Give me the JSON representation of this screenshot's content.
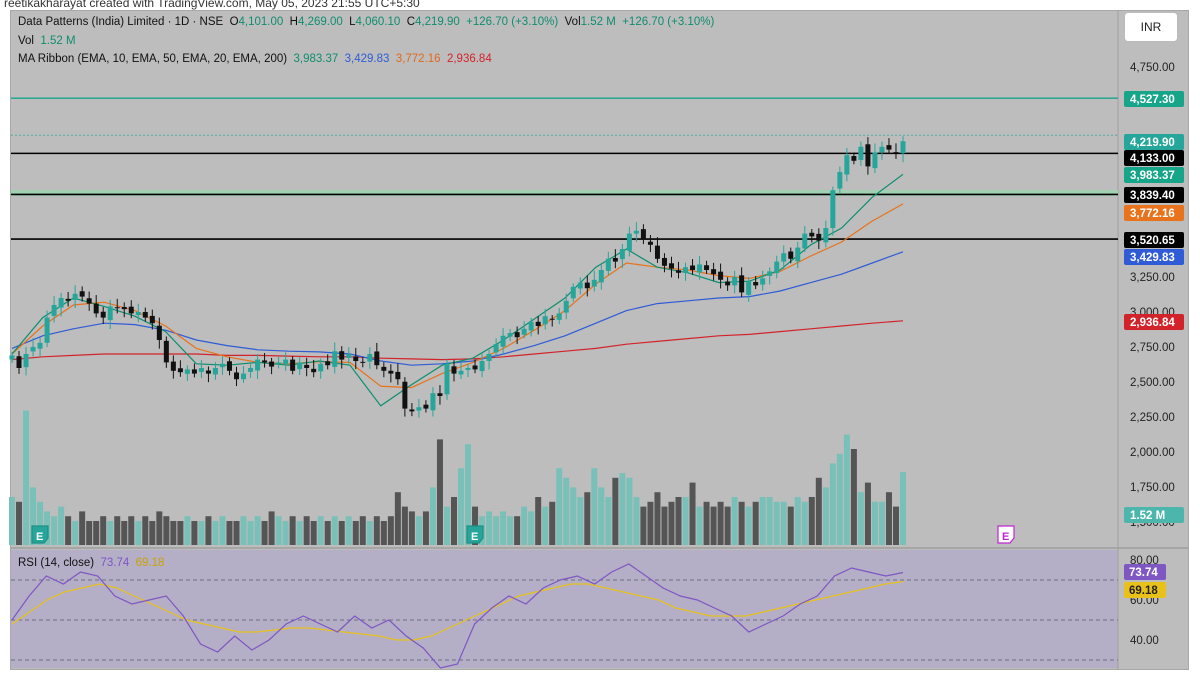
{
  "header": {
    "creator_line": "reetikakharayat created with TradingView.com, May 05, 2023 21:55 UTC+5:30",
    "currency": "INR"
  },
  "legend": {
    "symbol": "Data Patterns (India) Limited · 1D · NSE",
    "open_label": "O",
    "open": "4,101.00",
    "high_label": "H",
    "high": "4,269.00",
    "low_label": "L",
    "low": "4,060.10",
    "close_label": "C",
    "close": "4,219.90",
    "change": "+126.70 (+3.10%)",
    "vol_label": "Vol",
    "vol": "1.52 M",
    "change2": "+126.70 (+3.10%)",
    "vol_row_label": "Vol",
    "vol_row_value": "1.52 M",
    "ma_label": "MA Ribbon (EMA, 10, EMA, 50, EMA, 20, EMA, 200)",
    "ma_values": [
      "3,983.37",
      "3,429.83",
      "3,772.16",
      "2,936.84"
    ],
    "rsi_label": "RSI (14, close)",
    "rsi_value": "73.74",
    "rsi_ma_value": "69.18"
  },
  "colors": {
    "background": "#bdbdbd",
    "rsi_background": "#b4aec6",
    "up_candle": "#26a69a",
    "down_candle": "#111111",
    "ema10": "#0e8e6e",
    "ema20": "#e8731c",
    "ema50": "#2f5bd6",
    "ema200": "#d3232a",
    "rsi_line": "#7e57c2",
    "rsi_ma": "#e8c21a",
    "vol_up": "#79c1b8",
    "vol_down": "#555555",
    "hline_teal": "#17a589",
    "hline_black": "#000000"
  },
  "chart_data": {
    "type": "candlestick",
    "title": "Data Patterns (India) Limited · 1D · NSE",
    "y_axis_ticks": [
      "4,750.00",
      "3,250.00",
      "3,000.00",
      "2,750.00",
      "2,500.00",
      "2,250.00",
      "2,000.00",
      "1,750.00",
      "1,500.00"
    ],
    "ylim": [
      1500,
      5000
    ],
    "price_tags": [
      {
        "label": "4,527.30",
        "value": 4527.3,
        "style": "teal-line"
      },
      {
        "label": "4,219.90",
        "value": 4219.9,
        "style": "last-price"
      },
      {
        "label": "4,133.00",
        "value": 4133.0,
        "style": "black-line"
      },
      {
        "label": "3,983.37",
        "value": 3983.37,
        "style": "ema10"
      },
      {
        "label": "3,839.40",
        "value": 3839.4,
        "style": "black-line"
      },
      {
        "label": "3,772.16",
        "value": 3772.16,
        "style": "ema20"
      },
      {
        "label": "3,520.65",
        "value": 3520.65,
        "style": "black-line"
      },
      {
        "label": "3,429.83",
        "value": 3429.83,
        "style": "ema50"
      },
      {
        "label": "2,936.84",
        "value": 2936.84,
        "style": "ema200"
      },
      {
        "label": "1.52 M",
        "value": 1.52,
        "style": "volume"
      }
    ],
    "horizontal_lines": [
      {
        "value": 4527.3,
        "color": "teal"
      },
      {
        "value": 4133.0,
        "color": "black"
      },
      {
        "value": 3850.0,
        "color": "green-band"
      },
      {
        "value": 3839.4,
        "color": "black"
      },
      {
        "value": 3520.65,
        "color": "black"
      }
    ],
    "close_series": [
      2690,
      2600,
      2700,
      2750,
      2780,
      2960,
      3050,
      3100,
      3080,
      3130,
      3110,
      3060,
      2990,
      2960,
      3040,
      3030,
      3020,
      2990,
      3000,
      2960,
      2920,
      2800,
      2640,
      2580,
      2570,
      2590,
      2560,
      2600,
      2560,
      2600,
      2630,
      2580,
      2520,
      2560,
      2600,
      2660,
      2640,
      2610,
      2640,
      2660,
      2580,
      2640,
      2600,
      2570,
      2630,
      2620,
      2720,
      2660,
      2700,
      2650,
      2640,
      2700,
      2620,
      2580,
      2560,
      2520,
      2310,
      2290,
      2320,
      2310,
      2420,
      2400,
      2630,
      2560,
      2580,
      2600,
      2590,
      2650,
      2700,
      2770,
      2830,
      2850,
      2820,
      2880,
      2930,
      2900,
      2970,
      2950,
      2990,
      3080,
      3180,
      3210,
      3170,
      3230,
      3300,
      3380,
      3360,
      3450,
      3560,
      3580,
      3520,
      3480,
      3380,
      3330,
      3310,
      3280,
      3320,
      3300,
      3340,
      3300,
      3270,
      3230,
      3190,
      3250,
      3140,
      3220,
      3190,
      3240,
      3290,
      3360,
      3420,
      3380,
      3460,
      3560,
      3540,
      3510,
      3600,
      3870,
      4000,
      4120,
      4080,
      4180,
      4040,
      4140,
      4180,
      4160,
      4140,
      4219.9
    ],
    "ema10_series": [
      2700,
      2960,
      3100,
      3040,
      2970,
      2860,
      2630,
      2620,
      2640,
      2620,
      2650,
      2620,
      2330,
      2480,
      2620,
      2670,
      2800,
      2950,
      3100,
      3320,
      3450,
      3320,
      3280,
      3210,
      3220,
      3300,
      3480,
      3600,
      3820,
      3983.37
    ],
    "ema20_series": [
      2700,
      2900,
      3050,
      3070,
      3010,
      2900,
      2740,
      2680,
      2640,
      2630,
      2645,
      2640,
      2470,
      2460,
      2560,
      2640,
      2740,
      2870,
      3010,
      3200,
      3350,
      3320,
      3300,
      3260,
      3240,
      3290,
      3400,
      3500,
      3650,
      3772.16
    ],
    "ema50_series": [
      2740,
      2830,
      2880,
      2920,
      2910,
      2870,
      2800,
      2760,
      2730,
      2720,
      2715,
      2700,
      2650,
      2620,
      2630,
      2650,
      2700,
      2760,
      2830,
      2920,
      3010,
      3060,
      3080,
      3100,
      3110,
      3150,
      3210,
      3270,
      3350,
      3429.83
    ],
    "ema200_series": [
      2660,
      2680,
      2690,
      2700,
      2700,
      2700,
      2700,
      2690,
      2690,
      2685,
      2680,
      2680,
      2670,
      2665,
      2660,
      2665,
      2680,
      2700,
      2720,
      2740,
      2770,
      2790,
      2810,
      2830,
      2840,
      2860,
      2880,
      2900,
      2920,
      2936.84
    ],
    "volume_series": [
      1.0,
      0.9,
      2.8,
      1.2,
      0.9,
      0.7,
      0.6,
      0.8,
      0.6,
      0.5,
      0.7,
      0.5,
      0.5,
      0.6,
      0.5,
      0.6,
      0.5,
      0.6,
      0.5,
      0.6,
      0.5,
      0.7,
      0.6,
      0.5,
      0.5,
      0.6,
      0.5,
      0.5,
      0.6,
      0.5,
      0.6,
      0.5,
      0.5,
      0.6,
      0.5,
      0.6,
      0.5,
      0.7,
      0.6,
      0.5,
      0.6,
      0.5,
      0.6,
      0.5,
      0.6,
      0.5,
      0.6,
      0.5,
      0.6,
      0.5,
      0.6,
      0.5,
      0.6,
      0.5,
      0.6,
      1.1,
      0.8,
      0.7,
      0.6,
      0.7,
      1.2,
      2.2,
      0.8,
      1.0,
      1.6,
      2.1,
      0.8,
      0.6,
      0.7,
      0.6,
      0.7,
      0.6,
      0.6,
      0.8,
      0.7,
      1.0,
      0.8,
      0.9,
      1.6,
      1.4,
      1.2,
      1.0,
      1.1,
      1.6,
      1.2,
      1.0,
      1.4,
      1.5,
      1.4,
      1.0,
      0.8,
      0.9,
      1.1,
      0.8,
      0.9,
      1.0,
      1.0,
      1.3,
      0.8,
      0.9,
      0.8,
      0.9,
      0.8,
      1.0,
      0.9,
      0.8,
      0.9,
      1.0,
      1.0,
      0.9,
      0.9,
      0.8,
      1.0,
      0.9,
      1.0,
      1.4,
      1.2,
      1.7,
      1.9,
      2.3,
      2.0,
      1.1,
      1.3,
      0.9,
      0.9,
      1.1,
      0.8,
      1.52
    ],
    "rsi": {
      "label": "RSI (14, close)",
      "ticks": [
        "80.00",
        "60.00",
        "40.00"
      ],
      "levels": [
        70,
        50,
        30
      ],
      "value_tags": [
        {
          "label": "73.74",
          "value": 73.74
        },
        {
          "label": "69.18",
          "value": 69.18
        }
      ],
      "rsi_series": [
        50,
        62,
        72,
        68,
        74,
        72,
        62,
        58,
        60,
        62,
        52,
        38,
        34,
        42,
        35,
        40,
        48,
        52,
        48,
        44,
        52,
        46,
        50,
        42,
        36,
        26,
        28,
        48,
        56,
        62,
        58,
        66,
        70,
        72,
        68,
        74,
        78,
        72,
        66,
        62,
        60,
        56,
        52,
        44,
        48,
        52,
        58,
        62,
        72,
        76,
        74,
        72,
        73.74
      ],
      "ma_series": [
        48,
        54,
        60,
        64,
        66,
        68,
        66,
        62,
        58,
        54,
        50,
        48,
        46,
        44,
        44,
        45,
        46,
        46,
        45,
        44,
        43,
        42,
        40,
        40,
        42,
        46,
        50,
        54,
        58,
        62,
        64,
        66,
        68,
        68,
        66,
        64,
        62,
        60,
        56,
        54,
        52,
        52,
        52,
        54,
        56,
        58,
        60,
        62,
        64,
        66,
        68,
        69.18
      ]
    }
  }
}
